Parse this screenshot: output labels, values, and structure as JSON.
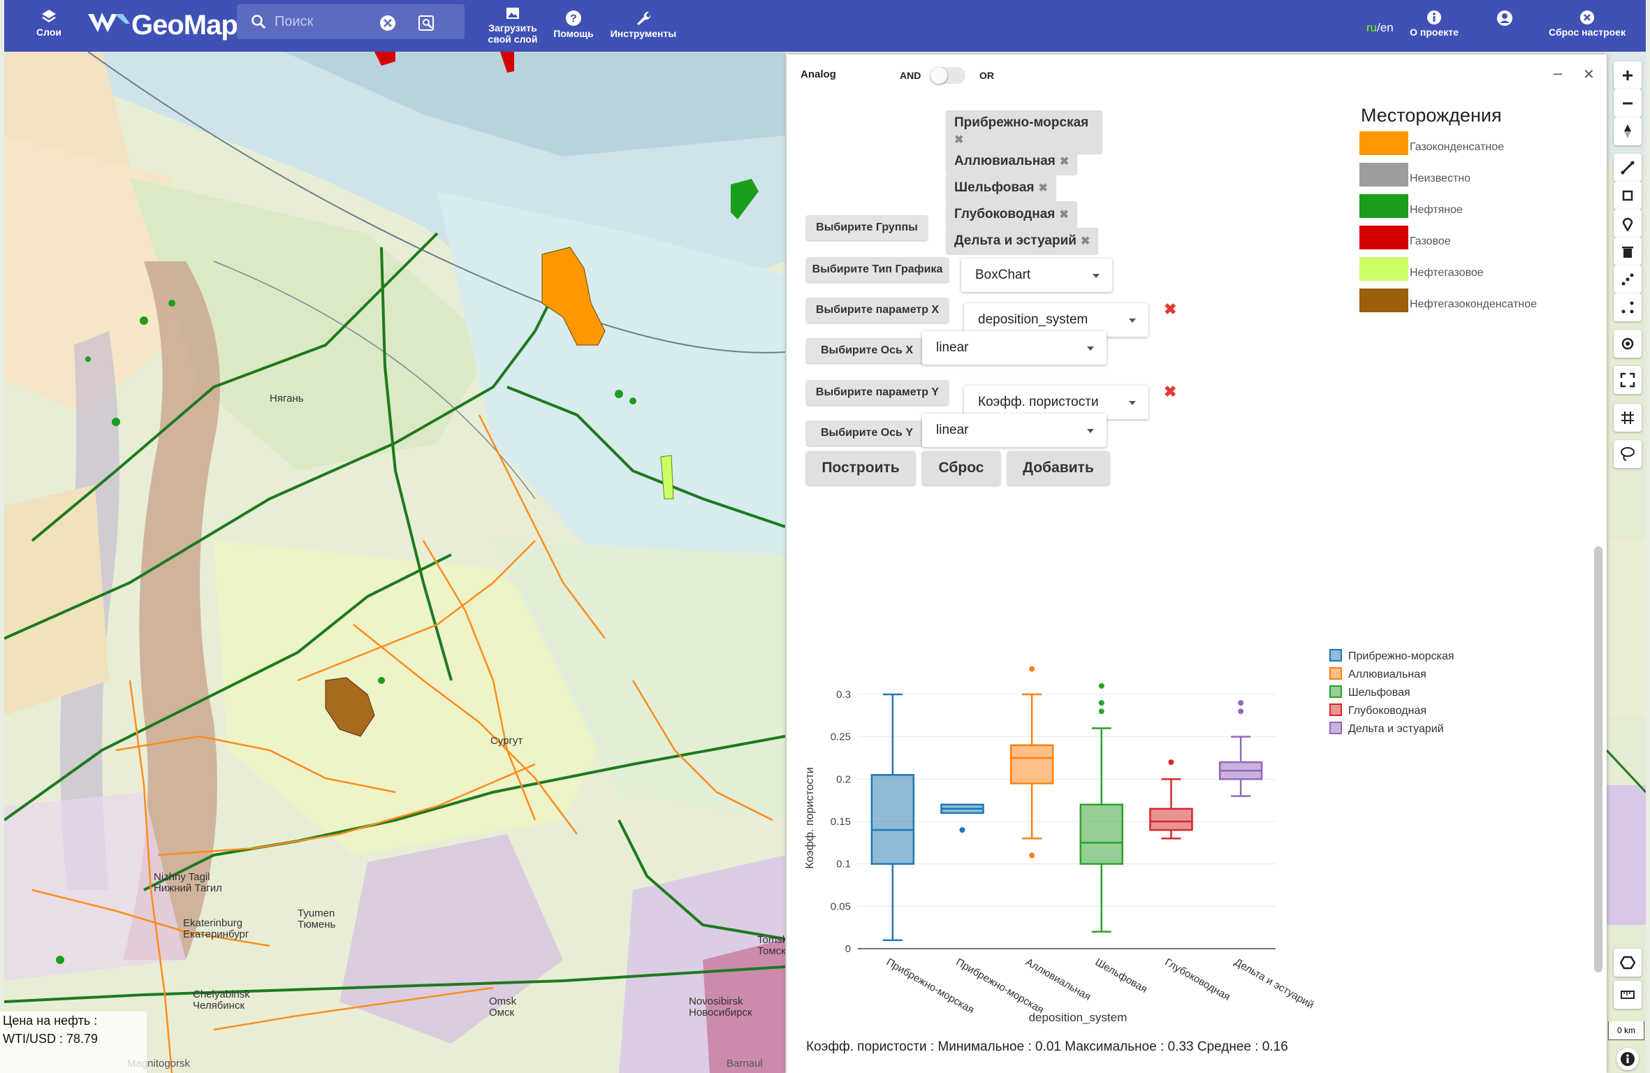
{
  "topbar": {
    "layers_label": "Слои",
    "logo_text": "GeoMap",
    "search_placeholder": "Поиск",
    "upload_label_1": "Загрузить",
    "upload_label_2": "свой слой",
    "help_label": "Помощь",
    "tools_label": "Инструменты",
    "lang_ru": "ru",
    "lang_en": "/en",
    "about_label": "О проекте",
    "reset_label": "Сброс настроек",
    "accent": "#3f51b5"
  },
  "map": {
    "oil_price_label": "Цена на нефть :",
    "wti_label": "WTI/USD : 78.79",
    "places": {
      "nizhny_tagil_en": "Nizhny Tagil",
      "nizhny_tagil_ru": "Нижний Тагил",
      "tyumen_en": "Tyumen",
      "tyumen_ru": "Тюмень",
      "yekaterinburg_en": "Ekaterinburg",
      "yekaterinburg_ru": "Екатеринбург",
      "chelyabinsk_en": "Chelyabinsk",
      "chelyabinsk_ru": "Челябинск",
      "omsk_en": "Omsk",
      "omsk_ru": "Омск",
      "novosibirsk_en": "Novosibirsk",
      "novosibirsk_ru": "Новосибирск",
      "tomsk_en": "Tomsk",
      "tomsk_ru": "Томск",
      "surgut": "Сургут",
      "nyagan": "Нягань",
      "magnitogorsk": "Magnitogorsk",
      "barnaul": "Barnaul"
    },
    "scale_label": "0 km"
  },
  "panel": {
    "title": "Analog",
    "and_label": "AND",
    "or_label": "OR",
    "group_button": "Выбирите Группы",
    "groups": [
      "Прибрежно-морская",
      "Аллювиальная",
      "Шельфовая",
      "Глубоководная",
      "Дельта и эстуарий"
    ],
    "chart_type_button": "Выбирите Тип Графика",
    "chart_type_value": "BoxChart",
    "param_x_button": "Выбирите параметр X",
    "param_x_value": "deposition_system",
    "axis_x_button": "Выбирите Ось X",
    "axis_x_value": "linear",
    "param_y_button": "Выбирите параметр Y",
    "param_y_value": "Коэфф. пористости",
    "axis_y_button": "Выбирите Ось Y",
    "axis_y_value": "linear",
    "build_button": "Построить",
    "reset_button": "Сброс",
    "add_button": "Добавить",
    "stats_text": "Коэфф. пористости : Минимальное : 0.01 Максимальное : 0.33 Среднее : 0.16"
  },
  "deposits_legend": {
    "title": "Месторождения",
    "items": [
      {
        "label": "Газоконденсатное",
        "color": "#ff9800"
      },
      {
        "label": "Неизвестно",
        "color": "#9e9e9e"
      },
      {
        "label": "Нефтяное",
        "color": "#1b9e1b"
      },
      {
        "label": "Газовое",
        "color": "#d50000"
      },
      {
        "label": "Нефтегазовое",
        "color": "#ccff66"
      },
      {
        "label": "Нефтегазоконденсатное",
        "color": "#9c5f0c"
      }
    ]
  },
  "chart_data": {
    "type": "box",
    "xlabel": "deposition_system",
    "ylabel": "Коэфф. пористости",
    "ylim": [
      0,
      0.33
    ],
    "yticks": [
      0,
      0.05,
      0.1,
      0.15,
      0.2,
      0.25,
      0.3
    ],
    "ytick_labels": [
      "0",
      "0.05",
      "0.1",
      "0.15",
      "0.2",
      "0.25",
      "0.3"
    ],
    "grid": true,
    "legend_position": "top-right",
    "categories": [
      "Прибрежно-морская",
      "Прибрежно-морская",
      "Аллювиальная",
      "Шельфовая",
      "Глубоководная",
      "Дельта и эстуарий"
    ],
    "series": [
      {
        "name": "Прибрежно-морская",
        "color": "#1f77b4",
        "boxes": [
          {
            "category_index": 0,
            "min": 0.01,
            "q1": 0.1,
            "median": 0.14,
            "q3": 0.205,
            "max": 0.3,
            "outliers": []
          },
          {
            "category_index": 1,
            "min": null,
            "q1": 0.16,
            "median": 0.165,
            "q3": 0.17,
            "max": null,
            "outliers": [
              0.14
            ]
          }
        ]
      },
      {
        "name": "Аллювиальная",
        "color": "#ff7f0e",
        "boxes": [
          {
            "category_index": 2,
            "min": 0.13,
            "q1": 0.195,
            "median": 0.225,
            "q3": 0.24,
            "max": 0.3,
            "outliers": [
              0.33,
              0.11
            ]
          }
        ]
      },
      {
        "name": "Шельфовая",
        "color": "#2ca02c",
        "boxes": [
          {
            "category_index": 3,
            "min": 0.02,
            "q1": 0.1,
            "median": 0.125,
            "q3": 0.17,
            "max": 0.26,
            "outliers": [
              0.31,
              0.29,
              0.28
            ]
          }
        ]
      },
      {
        "name": "Глубоководная",
        "color": "#d62728",
        "boxes": [
          {
            "category_index": 4,
            "min": 0.13,
            "q1": 0.14,
            "median": 0.15,
            "q3": 0.165,
            "max": 0.2,
            "outliers": [
              0.22
            ]
          }
        ]
      },
      {
        "name": "Дельта и эстуарий",
        "color": "#9467bd",
        "boxes": [
          {
            "category_index": 5,
            "min": 0.18,
            "q1": 0.2,
            "median": 0.21,
            "q3": 0.22,
            "max": 0.25,
            "outliers": [
              0.29,
              0.28
            ]
          }
        ]
      }
    ]
  }
}
